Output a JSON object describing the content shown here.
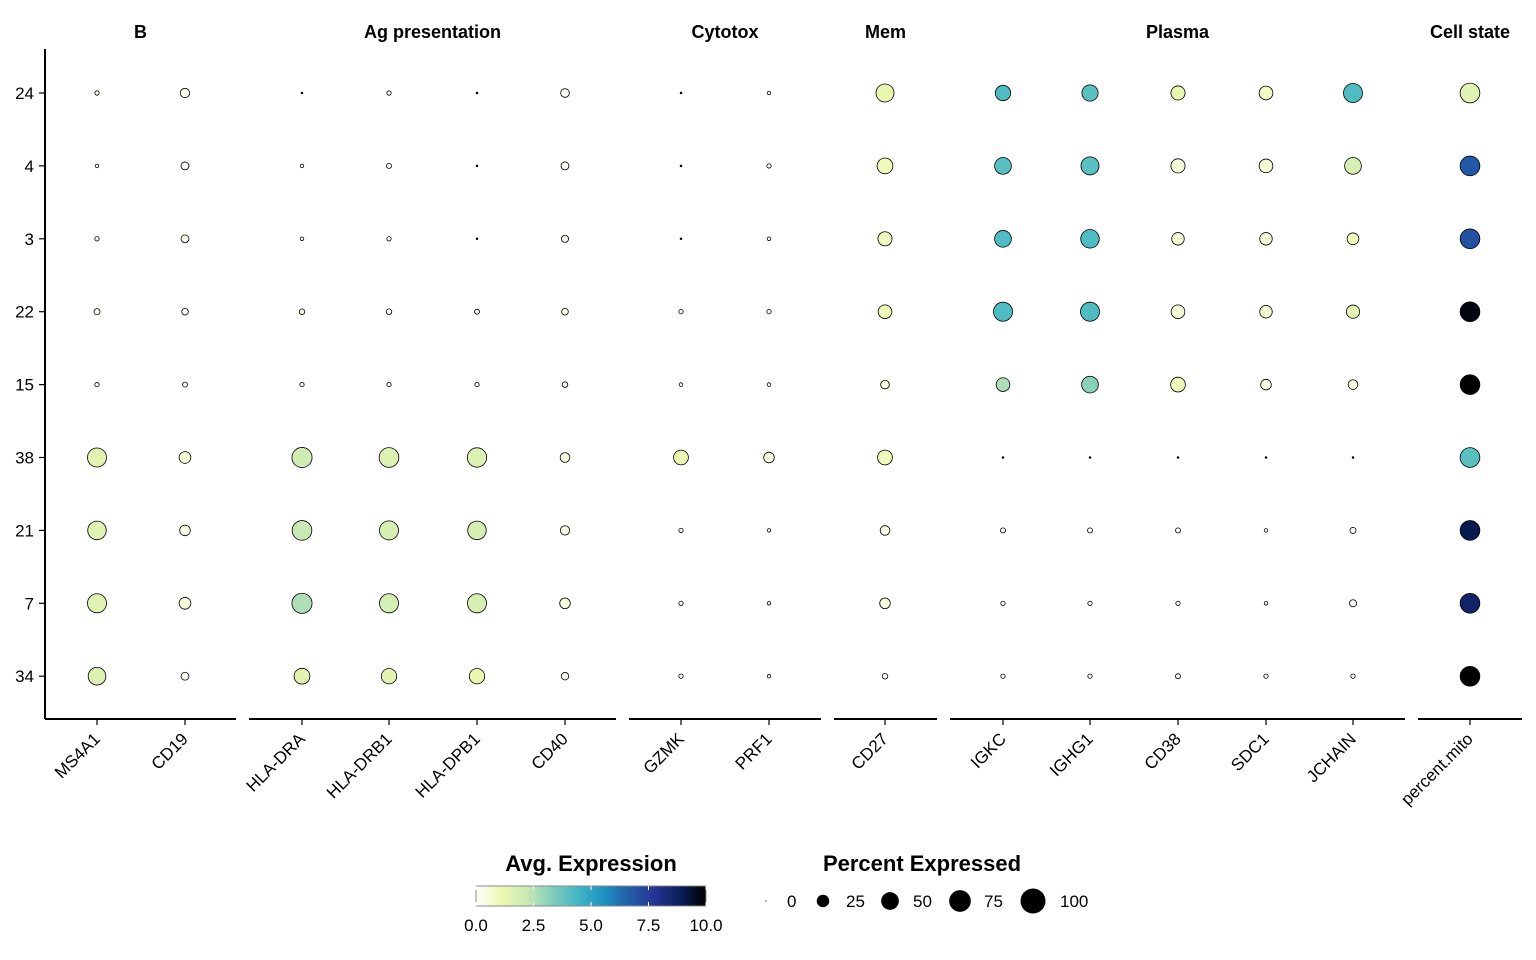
{
  "chart_data": {
    "type": "dotplot",
    "facets": [
      {
        "title": "B",
        "genes": [
          "MS4A1",
          "CD19"
        ]
      },
      {
        "title": "Ag presentation",
        "genes": [
          "HLA-DRA",
          "HLA-DRB1",
          "HLA-DPB1",
          "CD40"
        ]
      },
      {
        "title": "Cytotox",
        "genes": [
          "GZMK",
          "PRF1"
        ]
      },
      {
        "title": "Mem",
        "genes": [
          "CD27"
        ]
      },
      {
        "title": "Plasma",
        "genes": [
          "IGKC",
          "IGHG1",
          "CD38",
          "SDC1",
          "JCHAIN"
        ]
      },
      {
        "title": "Cell state",
        "genes": [
          "percent.mito"
        ]
      }
    ],
    "clusters": [
      "24",
      "4",
      "3",
      "22",
      "15",
      "38",
      "21",
      "7",
      "34"
    ],
    "genes": [
      "MS4A1",
      "CD19",
      "HLA-DRA",
      "HLA-DRB1",
      "HLA-DPB1",
      "CD40",
      "GZMK",
      "PRF1",
      "CD27",
      "IGKC",
      "IGHG1",
      "CD38",
      "SDC1",
      "JCHAIN",
      "percent.mito"
    ],
    "pct_expressed": [
      [
        3,
        14,
        1,
        3,
        1,
        12,
        1,
        2,
        52,
        38,
        42,
        32,
        30,
        58,
        62
      ],
      [
        2,
        10,
        2,
        4,
        1,
        10,
        1,
        3,
        40,
        45,
        52,
        32,
        30,
        45,
        62
      ],
      [
        3,
        10,
        2,
        3,
        1,
        8,
        1,
        2,
        32,
        45,
        55,
        25,
        25,
        22,
        62
      ],
      [
        6,
        7,
        5,
        5,
        4,
        7,
        3,
        3,
        30,
        58,
        58,
        30,
        25,
        28,
        62
      ],
      [
        3,
        4,
        3,
        3,
        3,
        5,
        2,
        2,
        12,
        30,
        45,
        35,
        18,
        15,
        62
      ],
      [
        58,
        22,
        65,
        62,
        60,
        15,
        35,
        18,
        35,
        1,
        1,
        1,
        1,
        1,
        62
      ],
      [
        55,
        18,
        62,
        58,
        55,
        14,
        3,
        2,
        15,
        4,
        4,
        4,
        2,
        6,
        62
      ],
      [
        58,
        22,
        65,
        58,
        58,
        18,
        3,
        2,
        18,
        3,
        3,
        3,
        2,
        8,
        62
      ],
      [
        50,
        10,
        40,
        38,
        38,
        9,
        3,
        2,
        5,
        3,
        3,
        4,
        3,
        3,
        62
      ]
    ],
    "avg_expression": [
      [
        0.3,
        0.2,
        0.1,
        0.1,
        0.1,
        0.2,
        0.1,
        0.1,
        1.2,
        4.2,
        4.0,
        1.2,
        0.8,
        4.2,
        1.5
      ],
      [
        0.2,
        0.2,
        0.1,
        0.1,
        0.1,
        0.2,
        0.1,
        0.1,
        1.0,
        4.0,
        4.0,
        0.6,
        0.6,
        1.8,
        6.8
      ],
      [
        0.2,
        0.2,
        0.1,
        0.1,
        0.1,
        0.2,
        0.1,
        0.1,
        0.9,
        4.2,
        4.2,
        0.6,
        0.6,
        1.0,
        7.0
      ],
      [
        0.2,
        0.2,
        0.2,
        0.1,
        0.1,
        0.2,
        0.1,
        0.1,
        1.0,
        4.2,
        4.2,
        0.6,
        0.6,
        1.5,
        9.8
      ],
      [
        0.2,
        0.2,
        0.1,
        0.1,
        0.1,
        0.2,
        0.1,
        0.1,
        0.5,
        2.6,
        3.2,
        1.0,
        0.4,
        0.4,
        10.0
      ],
      [
        1.4,
        0.6,
        2.0,
        1.6,
        1.6,
        0.4,
        1.2,
        0.4,
        1.0,
        0.1,
        0.1,
        0.1,
        0.1,
        0.1,
        4.0
      ],
      [
        1.5,
        0.3,
        2.2,
        1.8,
        1.8,
        0.3,
        0.2,
        0.2,
        0.3,
        0.1,
        0.1,
        0.1,
        0.1,
        0.1,
        9.0
      ],
      [
        1.5,
        0.5,
        2.6,
        1.8,
        1.8,
        0.4,
        0.2,
        0.2,
        0.4,
        0.1,
        0.1,
        0.1,
        0.1,
        0.1,
        8.6
      ],
      [
        1.6,
        0.2,
        1.4,
        1.4,
        1.2,
        0.2,
        0.1,
        0.1,
        0.1,
        0.1,
        0.1,
        0.1,
        0.1,
        0.1,
        10.0
      ]
    ],
    "color_legend": {
      "title": "Avg. Expression",
      "range": [
        0,
        10
      ],
      "ticks": [
        "0.0",
        "2.5",
        "5.0",
        "7.5",
        "10.0"
      ],
      "colors": [
        "#ffffff",
        "#edf8b1",
        "#c7e9b4",
        "#7fcdbb",
        "#41b6c4",
        "#1d91c0",
        "#225ea8",
        "#253494",
        "#081d58",
        "#000000"
      ]
    },
    "size_legend": {
      "title": "Percent Expressed",
      "values": [
        0,
        25,
        50,
        75,
        100
      ],
      "labels": [
        "0",
        "25",
        "50",
        "75",
        "100"
      ]
    },
    "grid": false,
    "legend_position": "bottom"
  }
}
